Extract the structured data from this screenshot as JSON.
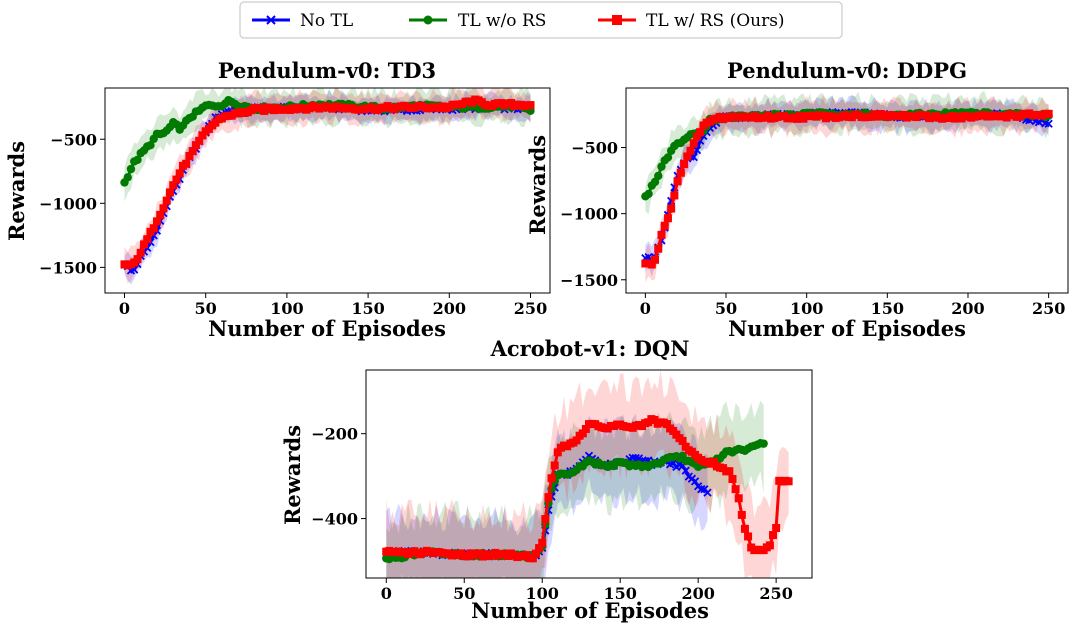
{
  "legend": {
    "entries": [
      {
        "label": "No TL",
        "color": "#0000ff",
        "marker": "x"
      },
      {
        "label": "TL w/o RS",
        "color": "#007a00",
        "marker": "o"
      },
      {
        "label": "TL w/ RS (Ours)",
        "color": "#ff0000",
        "marker": "s"
      }
    ]
  },
  "chart_data": [
    {
      "type": "line",
      "title": "Pendulum-v0: TD3",
      "xlabel": "Number of Episodes",
      "ylabel": "Rewards",
      "xlim": [
        -12,
        262
      ],
      "ylim": [
        -1700,
        -100
      ],
      "xticks": [
        0,
        50,
        100,
        150,
        200,
        250
      ],
      "yticks": [
        -1500,
        -1000,
        -500
      ],
      "series": [
        {
          "name": "No TL",
          "color": "#0000ff",
          "marker": "x",
          "band": 90,
          "keyframes": [
            [
              0,
              -1470
            ],
            [
              5,
              -1540
            ],
            [
              10,
              -1420
            ],
            [
              15,
              -1330
            ],
            [
              20,
              -1200
            ],
            [
              25,
              -1050
            ],
            [
              30,
              -900
            ],
            [
              35,
              -780
            ],
            [
              40,
              -650
            ],
            [
              45,
              -540
            ],
            [
              50,
              -440
            ],
            [
              55,
              -350
            ],
            [
              60,
              -300
            ],
            [
              65,
              -280
            ],
            [
              70,
              -270
            ],
            [
              80,
              -260
            ],
            [
              100,
              -260
            ],
            [
              125,
              -250
            ],
            [
              150,
              -270
            ],
            [
              175,
              -270
            ],
            [
              200,
              -260
            ],
            [
              225,
              -250
            ],
            [
              250,
              -260
            ]
          ]
        },
        {
          "name": "TL w/o RS",
          "color": "#007a00",
          "marker": "o",
          "band": 120,
          "keyframes": [
            [
              0,
              -840
            ],
            [
              5,
              -700
            ],
            [
              10,
              -620
            ],
            [
              15,
              -550
            ],
            [
              20,
              -470
            ],
            [
              25,
              -450
            ],
            [
              30,
              -380
            ],
            [
              35,
              -420
            ],
            [
              40,
              -330
            ],
            [
              45,
              -290
            ],
            [
              50,
              -240
            ],
            [
              55,
              -240
            ],
            [
              60,
              -230
            ],
            [
              65,
              -200
            ],
            [
              70,
              -230
            ],
            [
              80,
              -260
            ],
            [
              100,
              -250
            ],
            [
              120,
              -230
            ],
            [
              140,
              -240
            ],
            [
              160,
              -260
            ],
            [
              180,
              -240
            ],
            [
              200,
              -250
            ],
            [
              220,
              -250
            ],
            [
              240,
              -240
            ],
            [
              250,
              -280
            ]
          ]
        },
        {
          "name": "TL w/ RS (Ours)",
          "color": "#ff0000",
          "marker": "s",
          "band": 110,
          "keyframes": [
            [
              0,
              -1480
            ],
            [
              5,
              -1490
            ],
            [
              10,
              -1380
            ],
            [
              15,
              -1260
            ],
            [
              20,
              -1130
            ],
            [
              25,
              -1000
            ],
            [
              30,
              -860
            ],
            [
              35,
              -740
            ],
            [
              40,
              -640
            ],
            [
              45,
              -540
            ],
            [
              50,
              -440
            ],
            [
              55,
              -380
            ],
            [
              60,
              -330
            ],
            [
              65,
              -310
            ],
            [
              70,
              -300
            ],
            [
              80,
              -270
            ],
            [
              100,
              -260
            ],
            [
              125,
              -250
            ],
            [
              150,
              -260
            ],
            [
              175,
              -250
            ],
            [
              200,
              -250
            ],
            [
              215,
              -200
            ],
            [
              225,
              -230
            ],
            [
              250,
              -230
            ]
          ]
        }
      ]
    },
    {
      "type": "line",
      "title": "Pendulum-v0: DDPG",
      "xlabel": "Number of Episodes",
      "ylabel": "Rewards",
      "xlim": [
        -12,
        262
      ],
      "ylim": [
        -1600,
        -50
      ],
      "xticks": [
        0,
        50,
        100,
        150,
        200,
        250
      ],
      "yticks": [
        -1500,
        -1000,
        -500
      ],
      "series": [
        {
          "name": "No TL",
          "color": "#0000ff",
          "marker": "x",
          "band": 100,
          "keyframes": [
            [
              0,
              -1330
            ],
            [
              5,
              -1360
            ],
            [
              10,
              -1200
            ],
            [
              15,
              -950
            ],
            [
              20,
              -700
            ],
            [
              25,
              -600
            ],
            [
              30,
              -560
            ],
            [
              35,
              -430
            ],
            [
              40,
              -340
            ],
            [
              45,
              -290
            ],
            [
              50,
              -270
            ],
            [
              75,
              -260
            ],
            [
              100,
              -250
            ],
            [
              125,
              -240
            ],
            [
              150,
              -260
            ],
            [
              175,
              -270
            ],
            [
              200,
              -250
            ],
            [
              225,
              -250
            ],
            [
              250,
              -310
            ]
          ]
        },
        {
          "name": "TL w/o RS",
          "color": "#007a00",
          "marker": "o",
          "band": 120,
          "keyframes": [
            [
              0,
              -880
            ],
            [
              5,
              -780
            ],
            [
              10,
              -650
            ],
            [
              15,
              -540
            ],
            [
              20,
              -470
            ],
            [
              25,
              -430
            ],
            [
              30,
              -400
            ],
            [
              35,
              -380
            ],
            [
              40,
              -290
            ],
            [
              45,
              -280
            ],
            [
              50,
              -270
            ],
            [
              75,
              -260
            ],
            [
              100,
              -250
            ],
            [
              125,
              -240
            ],
            [
              150,
              -260
            ],
            [
              175,
              -250
            ],
            [
              200,
              -240
            ],
            [
              225,
              -250
            ],
            [
              250,
              -260
            ]
          ]
        },
        {
          "name": "TL w/ RS (Ours)",
          "color": "#ff0000",
          "marker": "s",
          "band": 110,
          "keyframes": [
            [
              0,
              -1380
            ],
            [
              5,
              -1390
            ],
            [
              10,
              -1170
            ],
            [
              15,
              -1000
            ],
            [
              20,
              -750
            ],
            [
              25,
              -600
            ],
            [
              30,
              -480
            ],
            [
              35,
              -350
            ],
            [
              40,
              -300
            ],
            [
              45,
              -280
            ],
            [
              50,
              -270
            ],
            [
              75,
              -270
            ],
            [
              100,
              -270
            ],
            [
              125,
              -260
            ],
            [
              150,
              -260
            ],
            [
              175,
              -270
            ],
            [
              200,
              -270
            ],
            [
              225,
              -260
            ],
            [
              250,
              -250
            ]
          ]
        }
      ]
    },
    {
      "type": "line",
      "title": "Acrobot-v1: DQN",
      "xlabel": "Number of Episodes",
      "ylabel": "Rewards",
      "xlim": [
        -13,
        273
      ],
      "ylim": [
        -540,
        -50
      ],
      "xticks": [
        0,
        50,
        100,
        150,
        200,
        250
      ],
      "yticks": [
        -400,
        -200
      ],
      "series": [
        {
          "name": "No TL",
          "color": "#0000ff",
          "marker": "x",
          "band": 80,
          "end": 207,
          "keyframes": [
            [
              0,
              -480
            ],
            [
              25,
              -480
            ],
            [
              50,
              -485
            ],
            [
              75,
              -485
            ],
            [
              95,
              -490
            ],
            [
              100,
              -470
            ],
            [
              105,
              -360
            ],
            [
              110,
              -300
            ],
            [
              120,
              -290
            ],
            [
              130,
              -255
            ],
            [
              140,
              -275
            ],
            [
              150,
              -270
            ],
            [
              160,
              -255
            ],
            [
              170,
              -270
            ],
            [
              180,
              -265
            ],
            [
              190,
              -280
            ],
            [
              200,
              -325
            ],
            [
              207,
              -340
            ]
          ]
        },
        {
          "name": "TL w/o RS",
          "color": "#007a00",
          "marker": "o",
          "band": 90,
          "end": 242,
          "keyframes": [
            [
              0,
              -495
            ],
            [
              25,
              -480
            ],
            [
              50,
              -485
            ],
            [
              75,
              -485
            ],
            [
              95,
              -490
            ],
            [
              100,
              -470
            ],
            [
              105,
              -340
            ],
            [
              110,
              -300
            ],
            [
              120,
              -290
            ],
            [
              130,
              -265
            ],
            [
              140,
              -275
            ],
            [
              150,
              -270
            ],
            [
              160,
              -275
            ],
            [
              170,
              -275
            ],
            [
              180,
              -260
            ],
            [
              190,
              -255
            ],
            [
              200,
              -280
            ],
            [
              210,
              -265
            ],
            [
              220,
              -240
            ],
            [
              230,
              -240
            ],
            [
              242,
              -220
            ]
          ]
        },
        {
          "name": "TL w/ RS (Ours)",
          "color": "#ff0000",
          "marker": "s",
          "band": 95,
          "end": 258,
          "keyframes": [
            [
              0,
              -480
            ],
            [
              25,
              -480
            ],
            [
              50,
              -485
            ],
            [
              75,
              -485
            ],
            [
              95,
              -490
            ],
            [
              100,
              -460
            ],
            [
              105,
              -320
            ],
            [
              110,
              -240
            ],
            [
              120,
              -220
            ],
            [
              130,
              -180
            ],
            [
              140,
              -185
            ],
            [
              150,
              -180
            ],
            [
              160,
              -185
            ],
            [
              170,
              -170
            ],
            [
              180,
              -180
            ],
            [
              190,
              -220
            ],
            [
              200,
              -260
            ],
            [
              210,
              -270
            ],
            [
              220,
              -290
            ],
            [
              225,
              -340
            ],
            [
              230,
              -420
            ],
            [
              235,
              -475
            ],
            [
              245,
              -470
            ],
            [
              250,
              -420
            ],
            [
              252,
              -310
            ],
            [
              258,
              -310
            ]
          ]
        }
      ]
    }
  ]
}
